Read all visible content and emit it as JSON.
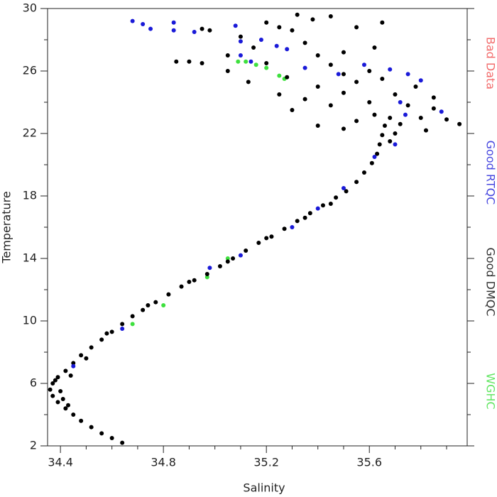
{
  "chart_data": {
    "type": "scatter",
    "x_label": "Salinity",
    "y_label": "Temperature",
    "xlim": [
      34.35,
      35.98
    ],
    "ylim": [
      2,
      30
    ],
    "xticks": [
      34.4,
      34.8,
      35.2,
      35.6
    ],
    "xminor": [
      34.5,
      34.6,
      34.7,
      34.9,
      35.0,
      35.1,
      35.3,
      35.4,
      35.5,
      35.7,
      35.8,
      35.9
    ],
    "yticks": [
      2,
      6,
      10,
      14,
      18,
      22,
      26,
      30
    ],
    "yminor": [
      4,
      8,
      12,
      16,
      20,
      24,
      28
    ],
    "legend": "right",
    "series": [
      {
        "name": "Bad Data",
        "color": "#f04848",
        "x": [],
        "values": []
      },
      {
        "name": "Good RTQC",
        "color": "#1a1ad8",
        "x": [
          34.68,
          34.72,
          34.75,
          34.84,
          34.84,
          34.92,
          35.08,
          35.1,
          35.1,
          35.14,
          35.18,
          35.24,
          35.28,
          35.35,
          35.48,
          35.58,
          35.68,
          35.75,
          35.8,
          35.72,
          35.74,
          35.7,
          35.62,
          35.5,
          35.4,
          35.3,
          35.1,
          34.98,
          34.64,
          34.45,
          35.88
        ],
        "values": [
          29.2,
          29.0,
          28.7,
          29.1,
          28.6,
          28.5,
          28.9,
          27.9,
          27.0,
          26.6,
          28.0,
          27.6,
          27.4,
          26.2,
          25.8,
          26.4,
          26.1,
          25.8,
          25.4,
          24.0,
          23.2,
          21.3,
          20.5,
          18.5,
          17.2,
          16.0,
          14.2,
          13.4,
          9.5,
          7.1,
          23.4
        ]
      },
      {
        "name": "Good DMQC",
        "color": "#000000",
        "x": [
          34.64,
          34.6,
          34.56,
          34.52,
          34.48,
          34.45,
          34.42,
          34.39,
          34.37,
          34.36,
          34.37,
          34.39,
          34.4,
          34.41,
          34.43,
          34.38,
          34.42,
          34.45,
          34.48,
          34.52,
          34.56,
          34.6,
          34.64,
          34.68,
          34.72,
          34.77,
          34.82,
          34.87,
          34.92,
          34.97,
          35.02,
          35.07,
          35.12,
          35.17,
          35.22,
          35.27,
          35.32,
          35.37,
          35.42,
          35.47,
          35.51,
          35.55,
          35.58,
          35.61,
          35.63,
          35.64,
          35.65,
          35.66,
          35.68,
          34.44,
          34.5,
          34.58,
          34.74,
          34.9,
          35.05,
          35.2,
          35.35,
          35.45,
          35.3,
          35.35,
          35.4,
          35.45,
          35.5,
          35.55,
          35.6,
          35.62,
          35.7,
          35.75,
          35.8,
          35.85,
          35.9,
          35.95,
          35.7,
          35.68,
          35.72,
          35.5,
          35.45,
          35.4,
          35.35,
          35.3,
          35.38,
          35.45,
          35.55,
          35.62,
          35.5,
          35.6,
          35.78,
          35.85,
          35.65,
          35.4,
          35.55,
          35.25,
          35.28,
          35.2,
          35.15,
          35.1,
          35.25,
          35.2,
          35.32,
          35.13,
          35.05,
          34.9,
          34.95,
          34.85,
          35.05,
          34.98,
          34.95,
          35.65,
          35.5,
          35.82
        ],
        "values": [
          2.2,
          2.5,
          2.8,
          3.2,
          3.6,
          4.0,
          4.4,
          4.8,
          5.2,
          5.6,
          6.0,
          6.4,
          5.5,
          5.0,
          4.6,
          6.2,
          6.8,
          7.3,
          7.8,
          8.3,
          8.8,
          9.3,
          9.8,
          10.3,
          10.7,
          11.2,
          11.7,
          12.2,
          12.6,
          13.0,
          13.5,
          14.0,
          14.5,
          15.0,
          15.4,
          15.9,
          16.4,
          16.9,
          17.4,
          17.9,
          18.3,
          18.9,
          19.5,
          20.1,
          20.7,
          21.3,
          21.9,
          22.5,
          23.0,
          6.5,
          7.6,
          9.2,
          11.0,
          12.5,
          13.8,
          15.3,
          16.6,
          17.5,
          23.5,
          24.2,
          25.0,
          23.8,
          24.6,
          25.3,
          24.0,
          23.2,
          24.5,
          23.8,
          23.0,
          23.6,
          22.9,
          22.6,
          22.0,
          21.5,
          22.6,
          25.8,
          26.4,
          27.0,
          27.8,
          28.6,
          29.3,
          29.5,
          28.8,
          27.5,
          27.2,
          26.0,
          25.0,
          24.3,
          25.5,
          22.5,
          22.8,
          24.5,
          25.6,
          26.5,
          27.5,
          28.2,
          28.8,
          29.1,
          29.6,
          25.3,
          26.0,
          26.6,
          26.5,
          26.6,
          27.0,
          28.6,
          28.7,
          29.1,
          22.3,
          22.2
        ]
      },
      {
        "name": "WGHC",
        "color": "#3ee03e",
        "x": [
          35.09,
          35.12,
          35.16,
          35.2,
          35.25,
          35.27,
          34.8,
          34.97,
          34.68,
          35.05
        ],
        "values": [
          26.6,
          26.6,
          26.4,
          26.2,
          25.7,
          25.5,
          11.0,
          12.8,
          9.8,
          14.0
        ]
      }
    ]
  }
}
